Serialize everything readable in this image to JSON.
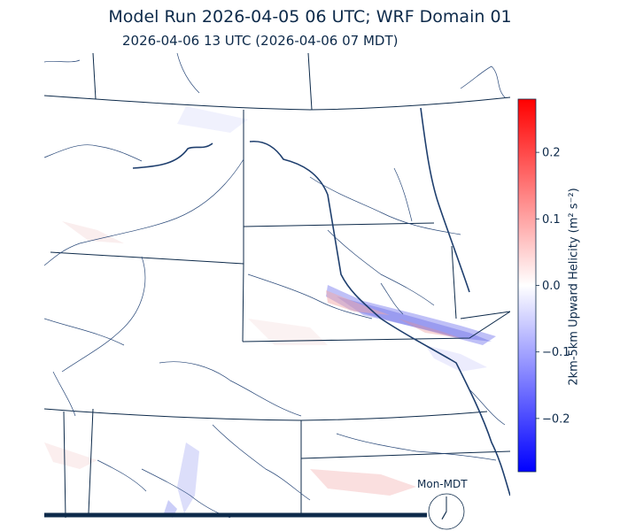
{
  "title": "Model Run 2026-04-05 06 UTC; WRF Domain 01",
  "subtitle": "2026-04-06 13 UTC  (2026-04-06 07 MDT)",
  "colorbar": {
    "label": "2km-5km Upward Helicity (m² s⁻²)",
    "min": -0.28,
    "max": 0.28,
    "ticks": [
      {
        "value": 0.2,
        "label": "0.2"
      },
      {
        "value": 0.1,
        "label": "0.1"
      },
      {
        "value": 0.0,
        "label": "0.0"
      },
      {
        "value": -0.1,
        "label": "−0.1"
      },
      {
        "value": -0.2,
        "label": "−0.2"
      }
    ],
    "colors": {
      "low": "#0000ff",
      "mid": "#ffffff",
      "high": "#ff0000"
    }
  },
  "clock": {
    "label": "Mon-MDT",
    "hour": 7,
    "minute": 0
  },
  "colors": {
    "boundary": "#0d2a4a",
    "river": "#1f3f6e",
    "text": "#0d2a4a"
  }
}
